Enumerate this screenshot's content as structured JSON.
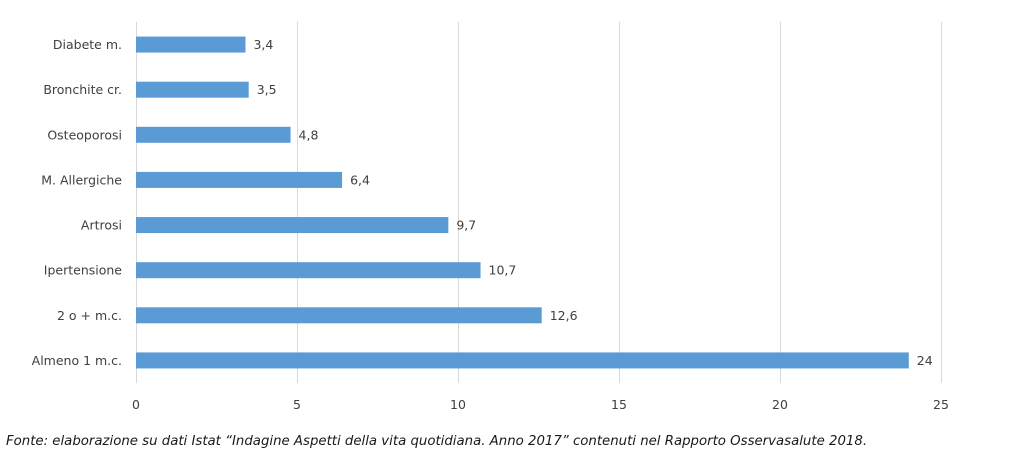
{
  "chart_data": {
    "type": "bar",
    "orientation": "horizontal",
    "categories": [
      "Diabete m.",
      "Bronchite cr.",
      "Osteoporosi",
      "M. Allergiche",
      "Artrosi",
      "Ipertensione",
      "2 o + m.c.",
      "Almeno 1 m.c."
    ],
    "values": [
      3.4,
      3.5,
      4.8,
      6.4,
      9.7,
      10.7,
      12.6,
      24
    ],
    "data_labels": [
      "3,4",
      "3,5",
      "4,8",
      "6,4",
      "9,7",
      "10,7",
      "12,6",
      "24"
    ],
    "xlim": [
      0,
      25
    ],
    "x_ticks": [
      0,
      5,
      10,
      15,
      20,
      25
    ],
    "x_tick_labels": [
      "0",
      "5",
      "10",
      "15",
      "20",
      "25"
    ],
    "grid": "vertical",
    "legend": "none",
    "bar_color": "#5b9bd5",
    "grid_color": "#d9d9d9",
    "title": "",
    "xlabel": "",
    "ylabel": ""
  },
  "caption": "Fonte: elaborazione su dati Istat “Indagine Aspetti della vita quotidiana. Anno 2017” contenuti nel Rapporto Osservasalute 2018."
}
